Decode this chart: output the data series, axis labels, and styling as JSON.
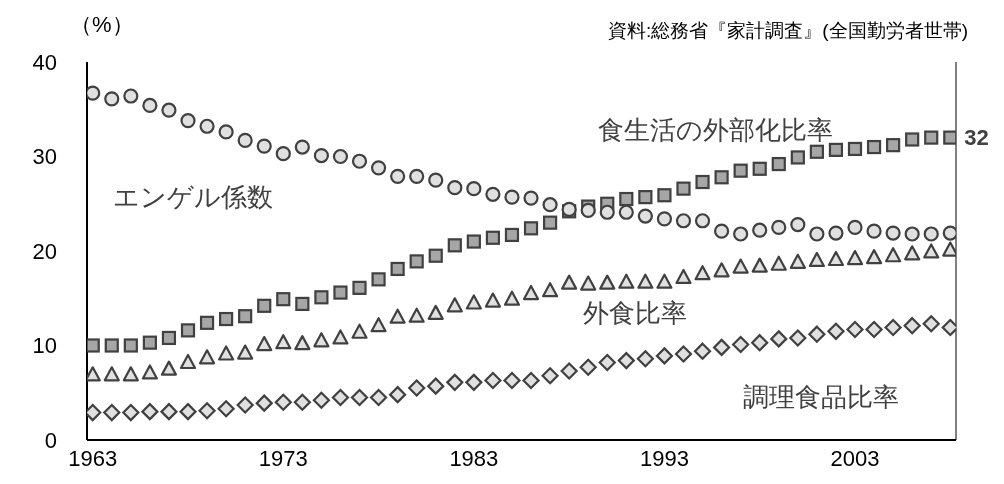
{
  "chart_data": {
    "type": "scatter",
    "ylabel": "（%）",
    "annotations": [
      "資料:総務省『家計調査』(全国勤労者世帯)"
    ],
    "x": [
      1963,
      1964,
      1965,
      1966,
      1967,
      1968,
      1969,
      1970,
      1971,
      1972,
      1973,
      1974,
      1975,
      1976,
      1977,
      1978,
      1979,
      1980,
      1981,
      1982,
      1983,
      1984,
      1985,
      1986,
      1987,
      1988,
      1989,
      1990,
      1991,
      1992,
      1993,
      1994,
      1995,
      1996,
      1997,
      1998,
      1999,
      2000,
      2001,
      2002,
      2003,
      2004,
      2005,
      2006,
      2007,
      2008
    ],
    "xlim": [
      1962.7,
      2008.3
    ],
    "xticks": [
      1963,
      1973,
      1983,
      1993,
      2003
    ],
    "ylim": [
      0,
      40
    ],
    "yticks": [
      0,
      10,
      20,
      30,
      40
    ],
    "grid": false,
    "legend": false,
    "series": [
      {
        "name": "エンゲル係数",
        "color": "#e0e0e0",
        "marker": "circle",
        "values": [
          36.7,
          36.1,
          36.4,
          35.4,
          34.9,
          33.8,
          33.2,
          32.6,
          31.7,
          31.1,
          30.3,
          31.0,
          30.1,
          30.0,
          29.5,
          28.8,
          27.9,
          27.9,
          27.5,
          26.7,
          26.6,
          26.0,
          25.7,
          25.6,
          24.9,
          24.4,
          24.3,
          24.1,
          24.1,
          23.7,
          23.4,
          23.2,
          23.2,
          22.1,
          21.8,
          22.2,
          22.5,
          22.8,
          21.8,
          21.9,
          22.5,
          22.1,
          21.9,
          21.8,
          21.8,
          21.9
        ]
      },
      {
        "name": "食生活の外部化比率",
        "color": "#a6a6a6",
        "marker": "square",
        "values": [
          10.0,
          10.0,
          10.0,
          10.3,
          10.8,
          11.6,
          12.4,
          12.8,
          13.1,
          14.2,
          14.9,
          14.4,
          15.1,
          15.6,
          16.1,
          17.0,
          18.1,
          18.9,
          19.5,
          20.6,
          21.0,
          21.4,
          21.7,
          22.4,
          23.0,
          24.2,
          24.7,
          25.0,
          25.5,
          25.7,
          25.9,
          26.6,
          27.3,
          27.8,
          28.5,
          28.7,
          29.2,
          29.9,
          30.5,
          30.7,
          30.8,
          31.0,
          31.2,
          31.8,
          32.0,
          32.0
        ],
        "value_labels": [
          null,
          null,
          null,
          null,
          null,
          null,
          null,
          null,
          null,
          null,
          null,
          null,
          null,
          null,
          null,
          null,
          null,
          null,
          null,
          null,
          null,
          null,
          null,
          null,
          null,
          null,
          null,
          null,
          null,
          null,
          null,
          null,
          null,
          null,
          null,
          null,
          null,
          null,
          null,
          null,
          null,
          null,
          null,
          null,
          null,
          "32"
        ]
      },
      {
        "name": "外食比率",
        "color": "#e0e0e0",
        "marker": "triangle",
        "values": [
          6.9,
          6.9,
          6.9,
          7.1,
          7.5,
          8.2,
          8.7,
          9.1,
          9.2,
          10.1,
          10.3,
          10.2,
          10.5,
          10.8,
          11.4,
          12.1,
          13.0,
          13.1,
          13.4,
          14.2,
          14.5,
          14.7,
          14.9,
          15.5,
          15.8,
          16.6,
          16.5,
          16.6,
          16.7,
          16.7,
          16.7,
          17.2,
          17.6,
          17.9,
          18.3,
          18.4,
          18.6,
          18.8,
          19.0,
          19.1,
          19.2,
          19.3,
          19.5,
          19.7,
          19.9,
          20.1
        ]
      },
      {
        "name": "調理食品比率",
        "color": "#e0e0e0",
        "marker": "diamond",
        "values": [
          2.9,
          2.9,
          2.9,
          3.0,
          3.0,
          3.0,
          3.1,
          3.3,
          3.7,
          3.9,
          4.0,
          4.0,
          4.2,
          4.5,
          4.5,
          4.5,
          4.8,
          5.5,
          5.7,
          6.1,
          6.1,
          6.3,
          6.3,
          6.3,
          6.8,
          7.3,
          7.7,
          8.2,
          8.4,
          8.6,
          8.9,
          9.1,
          9.4,
          9.8,
          10.1,
          10.3,
          10.7,
          10.8,
          11.2,
          11.5,
          11.7,
          11.7,
          11.9,
          12.1,
          12.3,
          11.9
        ]
      }
    ]
  }
}
